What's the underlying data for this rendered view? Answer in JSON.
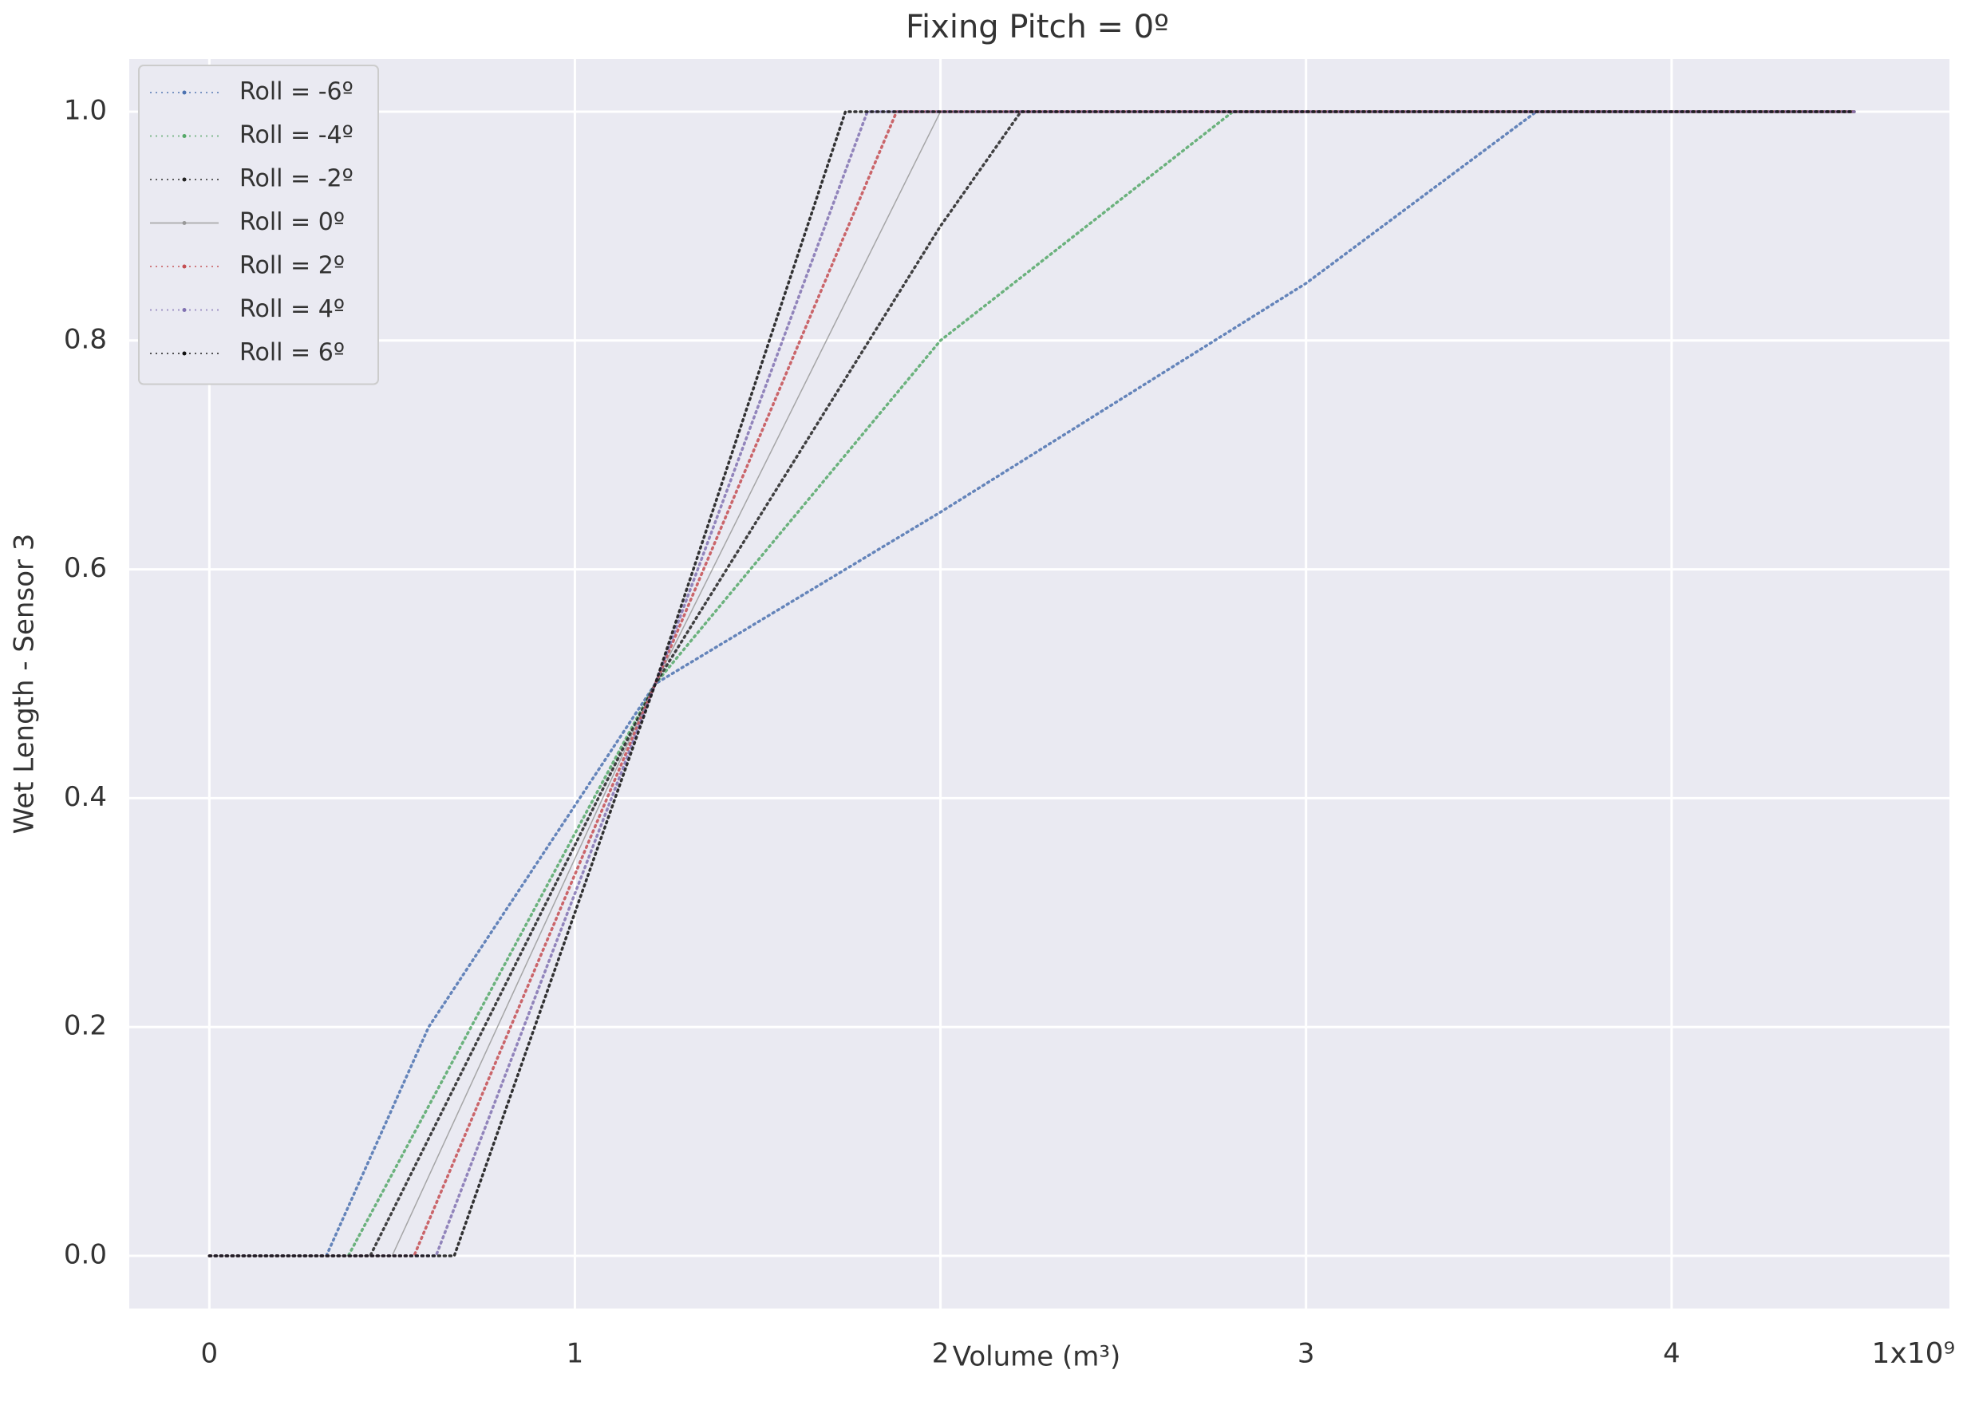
{
  "chart_data": {
    "type": "line",
    "title": "Fixing Pitch = 0º",
    "xlabel": "Volume (m³)",
    "ylabel": "Wet Length - Sensor 3",
    "x_offset_label": "1x10⁹",
    "xlim": [
      -0.219,
      4.76
    ],
    "ylim": [
      -0.046,
      1.046
    ],
    "xticks": [
      0,
      1,
      2,
      3,
      4
    ],
    "yticks": [
      {
        "value": 0,
        "label": "0.0"
      },
      0.2,
      0.4,
      0.6,
      0.8,
      {
        "value": 1,
        "label": "1.0"
      }
    ],
    "grid": true,
    "legend": "upper left",
    "series": [
      {
        "name": "Roll = -6º",
        "color": "#4c72b0",
        "linestyle": "dotted",
        "x": [
          0,
          0.32,
          0.6,
          1.22,
          2,
          3,
          3.63,
          4.5
        ],
        "values": [
          0,
          0,
          0.2,
          0.5,
          0.65,
          0.85,
          1,
          1
        ]
      },
      {
        "name": "Roll = -4º",
        "color": "#55a868",
        "linestyle": "dotted",
        "x": [
          0,
          0.38,
          1.22,
          2,
          2.8,
          4.5
        ],
        "values": [
          0,
          0,
          0.5,
          0.8,
          1,
          1
        ]
      },
      {
        "name": "Roll = -2º",
        "color": "#222222",
        "linestyle": "dotted",
        "x": [
          0,
          0.44,
          1.22,
          2,
          2.22,
          4.5
        ],
        "values": [
          0,
          0,
          0.5,
          0.9,
          1,
          1
        ]
      },
      {
        "name": "Roll = 0º",
        "color": "#999999",
        "linestyle": "solid",
        "x": [
          0,
          0.5,
          1.22,
          2,
          4.5
        ],
        "values": [
          0,
          0,
          0.5,
          1,
          1
        ]
      },
      {
        "name": "Roll = 2º",
        "color": "#c44e52",
        "linestyle": "dotted",
        "x": [
          0,
          0.56,
          1.22,
          1.88,
          4.5
        ],
        "values": [
          0,
          0,
          0.5,
          1,
          1
        ]
      },
      {
        "name": "Roll = 4º",
        "color": "#8172b2",
        "linestyle": "dotted",
        "x": [
          0,
          0.62,
          1.22,
          1.8,
          4.5
        ],
        "values": [
          0,
          0,
          0.5,
          1,
          1
        ]
      },
      {
        "name": "Roll = 6º",
        "color": "#111111",
        "linestyle": "dotted",
        "x": [
          0,
          0.67,
          1.22,
          1.74,
          4.5
        ],
        "values": [
          0,
          0,
          0.5,
          1,
          1
        ]
      }
    ]
  }
}
